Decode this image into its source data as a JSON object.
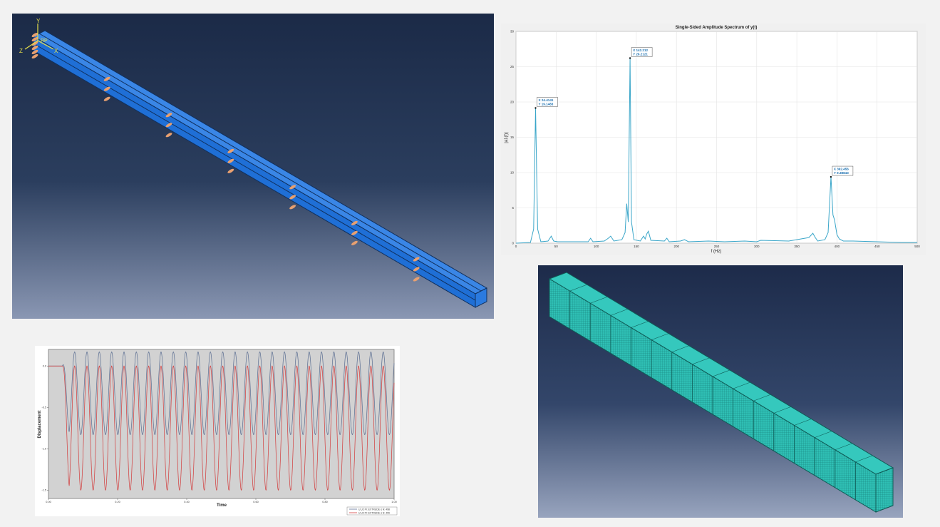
{
  "beam_view": {
    "axis_labels": {
      "y": "Y",
      "x": "X",
      "z": "Z",
      "rp": "RP"
    },
    "colors": {
      "beam": "#1f6fd6",
      "load_arrow": "#e8a070",
      "axis": "#e8e04a"
    }
  },
  "fft_chart": {
    "chart_data": {
      "type": "line",
      "title": "Single-Sided Amplitude Spectrum of y(t)",
      "xlabel": "f (Hz)",
      "ylabel": "|a1(f)|",
      "xlim": [
        0,
        500
      ],
      "ylim": [
        0,
        30
      ],
      "xticks": [
        0,
        50,
        100,
        150,
        200,
        250,
        300,
        350,
        400,
        450,
        500
      ],
      "yticks": [
        0,
        5,
        10,
        15,
        20,
        25,
        30
      ],
      "grid": true,
      "color": "#3aa6c9",
      "series": [
        {
          "x": [
            0,
            18,
            22,
            24.4,
            27,
            31,
            40,
            44,
            47,
            52,
            90,
            93,
            96,
            110,
            115,
            118,
            122,
            132,
            136,
            138,
            140,
            142.2,
            144,
            147,
            155,
            159,
            161,
            163,
            165,
            168,
            185,
            188,
            191,
            205,
            210,
            215,
            240,
            260,
            285,
            300,
            305,
            340,
            365,
            370,
            373,
            376,
            385,
            389,
            392.5,
            395,
            397,
            400,
            403,
            408,
            420,
            450,
            480,
            500
          ],
          "y": [
            0,
            0.1,
            2,
            19.1,
            2,
            0.2,
            0.3,
            1,
            0.3,
            0.2,
            0.2,
            0.7,
            0.2,
            0.3,
            0.7,
            1,
            0.3,
            0.5,
            1.5,
            5.6,
            3,
            26.2,
            3,
            0.5,
            0.3,
            1,
            0.6,
            1.3,
            1.7,
            0.4,
            0.3,
            0.7,
            0.2,
            0.3,
            0.5,
            0.2,
            0.3,
            0.2,
            0.3,
            0.2,
            0.4,
            0.3,
            0.8,
            1.4,
            0.8,
            0.3,
            0.5,
            1.5,
            9.4,
            4,
            3.3,
            1.2,
            0.6,
            0.3,
            0.3,
            0.2,
            0.1,
            0.1
          ]
        }
      ],
      "annotations": [
        {
          "x": 24.4141,
          "y": 19.1483,
          "label_x": "X 24.4141",
          "label_y": "Y 19.1483"
        },
        {
          "x": 142.212,
          "y": 26.2121,
          "label_x": "X 142.212",
          "label_y": "Y 26.2121"
        },
        {
          "x": 392.456,
          "y": 9.38843,
          "label_x": "X 392.456",
          "label_y": "Y 9.38843"
        }
      ]
    }
  },
  "displacement_chart": {
    "chart_data": {
      "type": "line",
      "xlabel": "Time",
      "ylabel": "Displacement",
      "xlim": [
        0,
        1
      ],
      "ylim": [
        -1.6,
        0.2
      ],
      "xticks": [
        0,
        0.2,
        0.4,
        0.6,
        0.8,
        1.0
      ],
      "xtick_labels": [
        "0.00",
        "0.20",
        "0.40",
        "0.60",
        "0.80",
        "1.00"
      ],
      "yticks": [
        0,
        -0.5,
        -1.0,
        -1.5
      ],
      "ytick_labels": [
        "0.0",
        "-0.5",
        "-1.0",
        "-1.5"
      ],
      "grid": false,
      "background": "#d2d2d2",
      "series": [
        {
          "name": "U:U2 PI: EXTRUDE-1 N: 498",
          "color": "#5b6e92",
          "mean": -0.33,
          "amplitude": 0.5,
          "cycles": 28,
          "onset": 0.04
        },
        {
          "name": "U:U2 PI: EXTRUDE-1 N: 499",
          "color": "#d23b3b",
          "mean": -0.75,
          "amplitude": 0.75,
          "cycles": 28,
          "onset": 0.04
        }
      ]
    }
  },
  "mesh_view": {
    "colors": {
      "mesh": "#2fbfb4",
      "mesh_line": "#0f5a55"
    },
    "sections": 16
  }
}
